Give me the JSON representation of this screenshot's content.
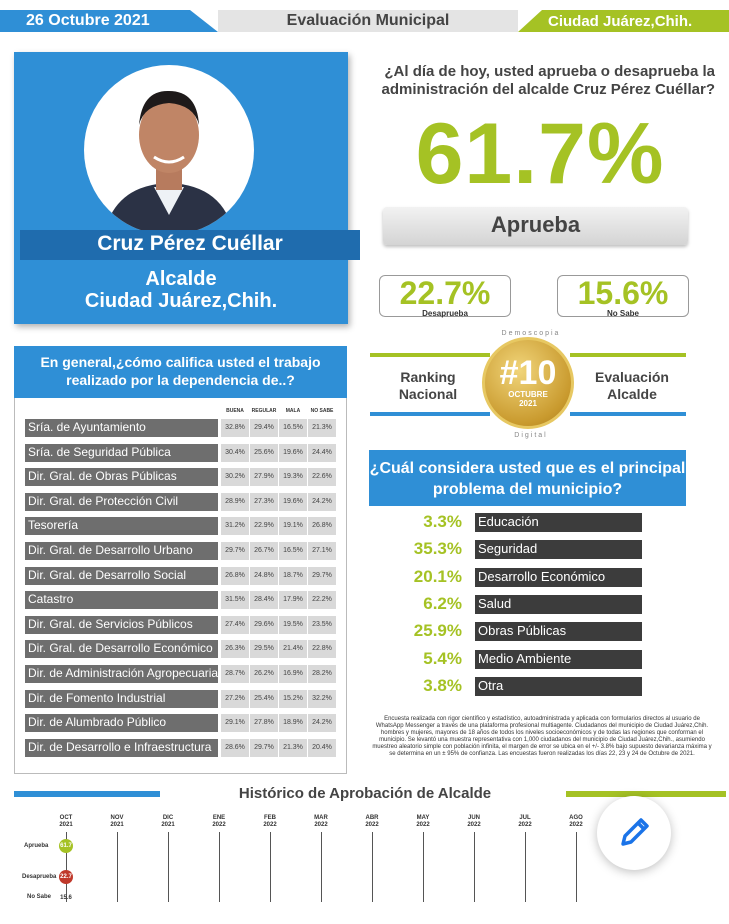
{
  "header": {
    "date": "26 Octubre 2021",
    "title": "Evaluación Municipal",
    "city": "Ciudad Juárez,Chih."
  },
  "profile": {
    "name": "Cruz Pérez Cuéllar",
    "role_line1": "Alcalde",
    "role_line2": "Ciudad Juárez,Chih."
  },
  "approval": {
    "question": "¿Al día de hoy, usted aprueba o desaprueba la administración del alcalde Cruz Pérez Cuéllar?",
    "approve_value": "61.7%",
    "approve_label": "Aprueba",
    "disapprove_value": "22.7%",
    "disapprove_label": "Desaprueba",
    "unknown_value": "15.6%",
    "unknown_label": "No Sabe"
  },
  "ranking": {
    "left_line1": "Ranking",
    "left_line2": "Nacional",
    "badge_number": "#10",
    "badge_month": "OCTUBRE",
    "badge_year": "2021",
    "badge_arc_top": "Demoscopia",
    "badge_arc_bottom": "Digital",
    "right_line1": "Evaluación",
    "right_line2": "Alcalde"
  },
  "dependencias": {
    "title": "En general,¿cómo califica usted el trabajo realizado por la dependencia de..?",
    "columns": [
      "BUENA",
      "REGULAR",
      "MALA",
      "NO SABE"
    ]
  },
  "problems": {
    "title": "¿Cuál considera usted que es el principal problema del municipio?"
  },
  "methodology": "Encuesta realizada con rigor científico y estadístico, autoadministrada y aplicada con formularios directos al usuario de WhatsApp Messenger a través de una plataforma profesional multiagente. Ciudadanos del municipio de Ciudad Juárez,Chih. hombres y mujeres, mayores de 18 años de todos los niveles socioeconómicos y de todas las regiones que conforman el municipio. Se levantó una muestra representativa con 1,000 ciudadanos del municipio de Ciudad Juárez,Chih., asumiendo muestreo aleatorio simple con población infinita, el margen de error se ubica en el +/- 3.8% bajo supuesto devarianza máxima y se determina en un ± 95% de confianza. Las encuestas fueron realizadas los días 22, 23 y 24 de Octubre de 2021.",
  "history": {
    "title": "Histórico de Aprobación de Alcalde",
    "row_labels": [
      "Aprueba",
      "Desaprueba",
      "No Sabe"
    ]
  },
  "colors": {
    "blue": "#2f8fd6",
    "green": "#a5c224",
    "red": "#c0392b"
  },
  "chart_data": [
    {
      "type": "table",
      "title": "En general,¿cómo califica usted el trabajo realizado por la dependencia de..?",
      "columns": [
        "BUENA",
        "REGULAR",
        "MALA",
        "NO SABE"
      ],
      "rows": [
        {
          "label": "Sría. de Ayuntamiento",
          "values": [
            "32.8%",
            "29.4%",
            "16.5%",
            "21.3%"
          ]
        },
        {
          "label": "Sría. de Seguridad Pública",
          "values": [
            "30.4%",
            "25.6%",
            "19.6%",
            "24.4%"
          ]
        },
        {
          "label": "Dir. Gral. de Obras Públicas",
          "values": [
            "30.2%",
            "27.9%",
            "19.3%",
            "22.6%"
          ]
        },
        {
          "label": "Dir. Gral. de Protección Civil",
          "values": [
            "28.9%",
            "27.3%",
            "19.6%",
            "24.2%"
          ]
        },
        {
          "label": "Tesorería",
          "values": [
            "31.2%",
            "22.9%",
            "19.1%",
            "26.8%"
          ]
        },
        {
          "label": "Dir. Gral. de Desarrollo Urbano",
          "values": [
            "29.7%",
            "26.7%",
            "16.5%",
            "27.1%"
          ]
        },
        {
          "label": "Dir. Gral. de Desarrollo Social",
          "values": [
            "26.8%",
            "24.8%",
            "18.7%",
            "29.7%"
          ]
        },
        {
          "label": "Catastro",
          "values": [
            "31.5%",
            "28.4%",
            "17.9%",
            "22.2%"
          ]
        },
        {
          "label": "Dir. Gral. de Servicios Públicos",
          "values": [
            "27.4%",
            "29.6%",
            "19.5%",
            "23.5%"
          ]
        },
        {
          "label": "Dir. Gral. de Desarrollo Económico",
          "values": [
            "26.3%",
            "29.5%",
            "21.4%",
            "22.8%"
          ]
        },
        {
          "label": "Dir. de Administración Agropecuaria",
          "values": [
            "28.7%",
            "26.2%",
            "16.9%",
            "28.2%"
          ]
        },
        {
          "label": "Dir. de Fomento Industrial",
          "values": [
            "27.2%",
            "25.4%",
            "15.2%",
            "32.2%"
          ]
        },
        {
          "label": "Dir. de Alumbrado Público",
          "values": [
            "29.1%",
            "27.8%",
            "18.9%",
            "24.2%"
          ]
        },
        {
          "label": "Dir. de Desarrollo e Infraestructura",
          "values": [
            "28.6%",
            "29.7%",
            "21.3%",
            "20.4%"
          ]
        }
      ]
    },
    {
      "type": "table",
      "title": "¿Cuál considera usted que es el principal problema del municipio?",
      "rows": [
        {
          "value": "3.3%",
          "label": "Educación"
        },
        {
          "value": "35.3%",
          "label": "Seguridad"
        },
        {
          "value": "20.1%",
          "label": "Desarrollo Económico"
        },
        {
          "value": "6.2%",
          "label": "Salud"
        },
        {
          "value": "25.9%",
          "label": "Obras Públicas"
        },
        {
          "value": "5.4%",
          "label": "Medio Ambiente"
        },
        {
          "value": "3.8%",
          "label": "Otra"
        }
      ]
    },
    {
      "type": "scatter",
      "title": "Histórico de Aprobación de Alcalde",
      "categories": [
        [
          "OCT",
          "2021"
        ],
        [
          "NOV",
          "2021"
        ],
        [
          "DIC",
          "2021"
        ],
        [
          "ENE",
          "2022"
        ],
        [
          "FEB",
          "2022"
        ],
        [
          "MAR",
          "2022"
        ],
        [
          "ABR",
          "2022"
        ],
        [
          "MAY",
          "2022"
        ],
        [
          "JUN",
          "2022"
        ],
        [
          "JUL",
          "2022"
        ],
        [
          "AGO",
          "2022"
        ]
      ],
      "series": [
        {
          "name": "Aprueba",
          "values": [
            61.7
          ]
        },
        {
          "name": "Desaprueba",
          "values": [
            22.7
          ]
        },
        {
          "name": "No Sabe",
          "values": [
            15.6
          ]
        }
      ]
    }
  ]
}
